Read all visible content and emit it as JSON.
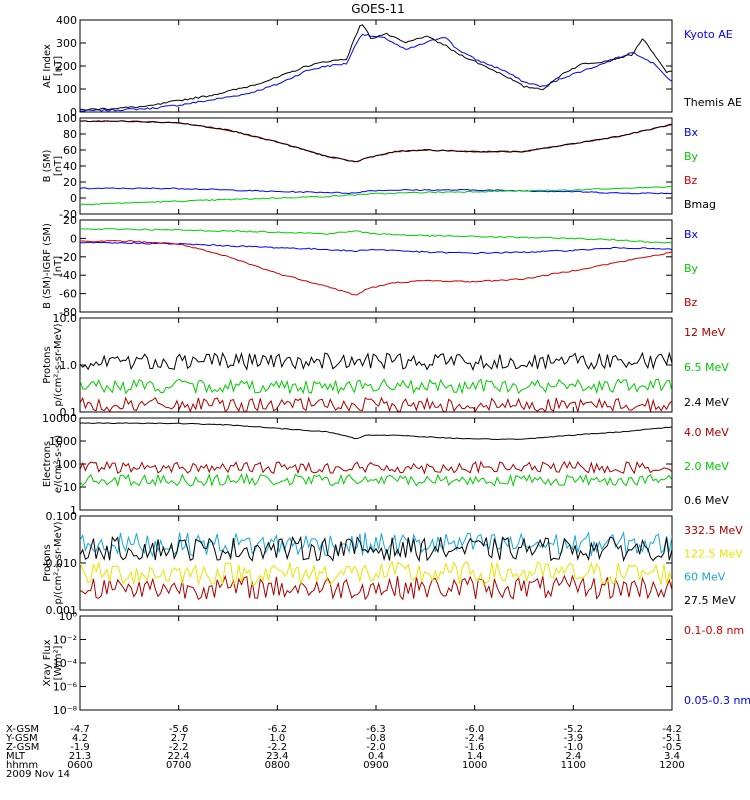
{
  "title": "GOES-11",
  "colors": {
    "black": "#000000",
    "blue": "#0000ff",
    "green": "#00cc00",
    "red": "#cc0000",
    "darkred": "#aa0000",
    "yellow": "#e6e600",
    "cyan": "#1aa6d8",
    "axis": "#000000"
  },
  "time_ticks": [
    "0600",
    "0700",
    "0800",
    "0900",
    "1000",
    "1100",
    "1200"
  ],
  "orbit_table": {
    "rows": [
      {
        "label": "X-GSM",
        "values": [
          "-4.7",
          "-5.6",
          "-6.2",
          "-6.3",
          "-6.0",
          "-5.2",
          "-4.2"
        ]
      },
      {
        "label": "Y-GSM",
        "values": [
          "4.2",
          "2.7",
          "1.0",
          "-0.8",
          "-2.4",
          "-3.9",
          "-5.1"
        ]
      },
      {
        "label": "Z-GSM",
        "values": [
          "-1.9",
          "-2.2",
          "-2.2",
          "-2.0",
          "-1.6",
          "-1.0",
          "-0.5"
        ]
      },
      {
        "label": "MLT",
        "values": [
          "21.3",
          "22.4",
          "23.4",
          "0.4",
          "1.4",
          "2.4",
          "3.4"
        ]
      },
      {
        "label": "hhmm",
        "values": [
          "0600",
          "0700",
          "0800",
          "0900",
          "1000",
          "1100",
          "1200"
        ]
      }
    ],
    "date": "2009 Nov 14"
  },
  "chart_data": [
    {
      "type": "line",
      "panel": "ae",
      "ylabel": "AE Index",
      "yunit": "[nT]",
      "ylim": [
        0,
        400
      ],
      "yticks": [
        "0",
        "100",
        "200",
        "300",
        "400"
      ],
      "x": [
        6.0,
        6.3,
        6.7,
        7.0,
        7.3,
        7.7,
        8.0,
        8.3,
        8.5,
        8.7,
        8.85,
        8.95,
        9.1,
        9.3,
        9.5,
        9.7,
        9.8,
        10.0,
        10.3,
        10.5,
        10.7,
        10.9,
        11.1,
        11.3,
        11.6,
        11.7,
        11.85,
        11.95,
        12.0
      ],
      "series": [
        {
          "name": "Kyoto AE",
          "color": "blue",
          "values": [
            5,
            8,
            15,
            30,
            50,
            80,
            120,
            180,
            200,
            210,
            340,
            330,
            320,
            270,
            300,
            330,
            280,
            230,
            180,
            130,
            110,
            150,
            180,
            210,
            260,
            240,
            200,
            150,
            130
          ]
        },
        {
          "name": "Themis AE",
          "color": "black",
          "values": [
            10,
            15,
            25,
            50,
            70,
            110,
            150,
            200,
            220,
            230,
            390,
            320,
            340,
            300,
            330,
            290,
            260,
            220,
            160,
            110,
            100,
            170,
            210,
            220,
            250,
            320,
            230,
            170,
            180
          ]
        }
      ]
    },
    {
      "type": "line",
      "panel": "bsm",
      "ylabel": "B (SM)",
      "yunit": "[nT]",
      "ylim": [
        -20,
        100
      ],
      "yticks": [
        "-20",
        "0",
        "20",
        "40",
        "60",
        "80",
        "100"
      ],
      "x": [
        6.0,
        6.5,
        7.0,
        7.5,
        8.0,
        8.5,
        8.8,
        8.9,
        9.2,
        9.5,
        10.0,
        10.5,
        11.0,
        11.5,
        12.0
      ],
      "series": [
        {
          "name": "Bx",
          "color": "blue",
          "values": [
            12,
            12,
            12,
            10,
            8,
            7,
            6,
            9,
            10,
            10,
            10,
            9,
            8,
            6,
            6
          ]
        },
        {
          "name": "By",
          "color": "green",
          "values": [
            -8,
            -6,
            -4,
            -2,
            0,
            2,
            4,
            5,
            6,
            7,
            8,
            9,
            10,
            12,
            14
          ]
        },
        {
          "name": "Bz",
          "color": "red",
          "values": [
            96,
            96,
            94,
            85,
            70,
            52,
            45,
            50,
            58,
            60,
            58,
            58,
            68,
            78,
            92
          ]
        },
        {
          "name": "Bmag",
          "color": "black",
          "values": [
            96,
            96,
            94,
            85,
            70,
            52,
            45,
            50,
            58,
            60,
            58,
            58,
            68,
            78,
            92
          ]
        }
      ]
    },
    {
      "type": "line",
      "panel": "bsmdiff",
      "ylabel": "B (SM)-IGRF (SM)",
      "yunit": "[nT]",
      "ylim": [
        -80,
        20
      ],
      "yticks": [
        "-80",
        "-60",
        "-40",
        "-20",
        "0",
        "20"
      ],
      "x": [
        6.0,
        6.5,
        7.0,
        7.5,
        8.0,
        8.5,
        8.8,
        8.9,
        9.2,
        9.5,
        10.0,
        10.5,
        11.0,
        11.5,
        12.0
      ],
      "series": [
        {
          "name": "Bx",
          "color": "blue",
          "values": [
            -5,
            -5,
            -6,
            -8,
            -10,
            -12,
            -14,
            -12,
            -13,
            -15,
            -16,
            -15,
            -13,
            -10,
            -12
          ]
        },
        {
          "name": "By",
          "color": "green",
          "values": [
            10,
            10,
            9,
            8,
            7,
            5,
            8,
            6,
            4,
            3,
            2,
            1,
            0,
            -2,
            -5
          ]
        },
        {
          "name": "Bz",
          "color": "red",
          "values": [
            -3,
            -3,
            -6,
            -20,
            -38,
            -52,
            -62,
            -55,
            -48,
            -46,
            -47,
            -44,
            -35,
            -25,
            -15
          ]
        }
      ]
    },
    {
      "type": "line",
      "panel": "protons1",
      "log": true,
      "ylabel": "Protons",
      "yunit": "p/(cm²-s-sr-MeV)",
      "ylim": [
        0.1,
        10
      ],
      "yticks": [
        "0.1",
        "1.0",
        "10.0"
      ],
      "series": [
        {
          "name": "12 MeV",
          "color": "darkred",
          "level": 0.1
        },
        {
          "name": "6.5 MeV",
          "color": "green",
          "level": 0.25
        },
        {
          "name": "2.4 MeV",
          "color": "black",
          "level": 0.8
        }
      ]
    },
    {
      "type": "line",
      "panel": "electrons",
      "log": true,
      "ylabel": "Electrons",
      "yunit": "e/(cm²-s-sr)",
      "ylim": [
        1,
        10000
      ],
      "yticks": [
        "1",
        "10",
        "100",
        "1000",
        "10000"
      ],
      "x": [
        6.0,
        6.5,
        7.0,
        7.5,
        8.0,
        8.5,
        8.8,
        8.9,
        9.2,
        9.5,
        10.0,
        10.5,
        11.0,
        11.5,
        12.0
      ],
      "series": [
        {
          "name": "4.0 MeV",
          "color": "darkred",
          "level": 70
        },
        {
          "name": "2.0 MeV",
          "color": "green",
          "level": 20
        },
        {
          "name": "0.6 MeV",
          "color": "black",
          "values": [
            6000,
            6000,
            5800,
            5000,
            3500,
            2500,
            1200,
            1800,
            1800,
            1500,
            1200,
            1200,
            1800,
            2500,
            4000
          ]
        }
      ]
    },
    {
      "type": "line",
      "panel": "protons2",
      "log": true,
      "ylabel": "Protons",
      "yunit": "p/(cm²-s-sr-MeV)",
      "ylim": [
        0.001,
        0.1
      ],
      "yticks": [
        "0.001",
        "0.010",
        "0.100"
      ],
      "series": [
        {
          "name": "332.5 MeV",
          "color": "darkred",
          "level": 0.003
        },
        {
          "name": "122.5 MeV",
          "color": "yellow",
          "level": 0.006
        },
        {
          "name": "60 MeV",
          "color": "cyan",
          "level": 0.025
        },
        {
          "name": "27.5 MeV",
          "color": "black",
          "level": 0.02
        }
      ]
    },
    {
      "type": "line",
      "panel": "xray",
      "log": true,
      "ylabel": "Xray Flux",
      "yunit": "[W/m²]",
      "ylim": [
        1e-09,
        1
      ],
      "yticks": [
        "10⁻⁸",
        "10⁻⁶",
        "10⁻⁴",
        "10⁻²",
        "10⁰"
      ],
      "series": [
        {
          "name": "0.1-0.8 nm",
          "color": "red"
        },
        {
          "name": "0.05-0.3 nm",
          "color": "blue"
        }
      ]
    }
  ]
}
